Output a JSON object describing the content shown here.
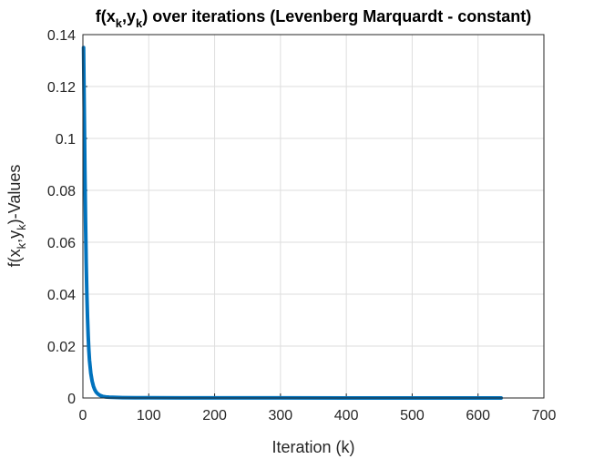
{
  "chart_data": {
    "type": "line",
    "title": {
      "pre": "f(x",
      "s1": "k",
      "mid": ",y",
      "s2": "k",
      "post": ") over iterations (Levenberg Marquardt - constant)"
    },
    "xlabel": "Iteration (k)",
    "ylabel": {
      "pre": "f(x",
      "s1": "k",
      "mid": ",y",
      "s2": "k",
      "post": ")-Values"
    },
    "xlim": [
      0,
      700
    ],
    "ylim": [
      0,
      0.14
    ],
    "xticks": [
      "0",
      "100",
      "200",
      "300",
      "400",
      "500",
      "600",
      "700"
    ],
    "yticks": [
      "0",
      "0.02",
      "0.04",
      "0.06",
      "0.08",
      "0.1",
      "0.12",
      "0.14"
    ],
    "grid": true,
    "line_color": "#0072BD",
    "series": [
      {
        "x": [
          1,
          2,
          3,
          4,
          5,
          6,
          7,
          8,
          9,
          10,
          12,
          14,
          16,
          18,
          20,
          23,
          26,
          30,
          35,
          40,
          50,
          60,
          80,
          100,
          150,
          200,
          300,
          400,
          500,
          600,
          635
        ],
        "y": [
          0.135,
          0.112,
          0.088,
          0.068,
          0.052,
          0.04,
          0.031,
          0.024,
          0.0185,
          0.0145,
          0.0095,
          0.0065,
          0.0045,
          0.0032,
          0.0023,
          0.0015,
          0.001,
          0.0006,
          0.0004,
          0.0003,
          0.0002,
          0.00015,
          0.0001,
          8e-05,
          5e-05,
          4e-05,
          3e-05,
          2e-05,
          2e-05,
          1e-05,
          1e-05
        ]
      }
    ]
  }
}
